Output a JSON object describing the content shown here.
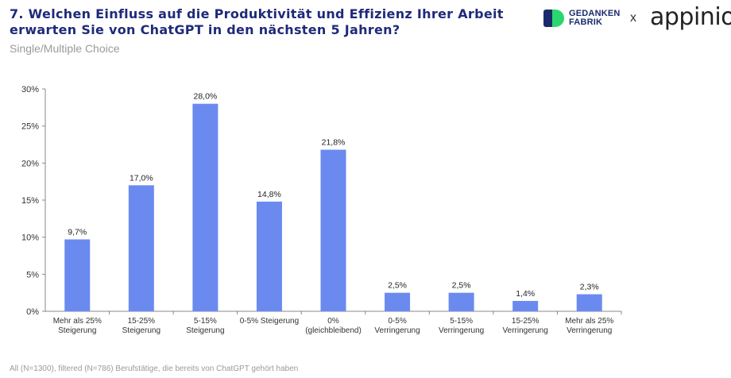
{
  "header": {
    "title_line1": "7. Welchen Einfluss auf die Produktivität und Effizienz Ihrer Arbeit",
    "title_line2": "erwarten Sie von ChatGPT in den nächsten 5 Jahren?",
    "subtitle": "Single/Multiple Choice"
  },
  "logos": {
    "gedanken_line1": "GEDANKEN",
    "gedanken_line2": "FABRIK",
    "times": "x",
    "appinio": "appinio"
  },
  "footer": {
    "note": "All (N=1300), filtered (N=786) Berufstätige, die bereits von ChatGPT gehört haben"
  },
  "colors": {
    "bar": "#6B8AF0",
    "title": "#1f2a7a",
    "axis": "#888888",
    "text": "#333333"
  },
  "chart_data": {
    "type": "bar",
    "title": "",
    "xlabel": "",
    "ylabel": "",
    "ylim": [
      0,
      30
    ],
    "yticks": [
      0,
      5,
      10,
      15,
      20,
      25,
      30
    ],
    "ytick_labels": [
      "0%",
      "5%",
      "10%",
      "15%",
      "20%",
      "25%",
      "30%"
    ],
    "categories": [
      [
        "Mehr als 25%",
        "Steigerung"
      ],
      [
        "15-25%",
        "Steigerung"
      ],
      [
        "5-15%",
        "Steigerung"
      ],
      [
        "0-5% Steigerung"
      ],
      [
        "0%",
        "(gleichbleibend)"
      ],
      [
        "0-5%",
        "Verringerung"
      ],
      [
        "5-15%",
        "Verringerung"
      ],
      [
        "15-25%",
        "Verringerung"
      ],
      [
        "Mehr als 25%",
        "Verringerung"
      ]
    ],
    "values": [
      9.7,
      17.0,
      28.0,
      14.8,
      21.8,
      2.5,
      2.5,
      1.4,
      2.3
    ],
    "value_labels": [
      "9,7%",
      "17,0%",
      "28,0%",
      "14,8%",
      "21,8%",
      "2,5%",
      "2,5%",
      "1,4%",
      "2,3%"
    ]
  }
}
